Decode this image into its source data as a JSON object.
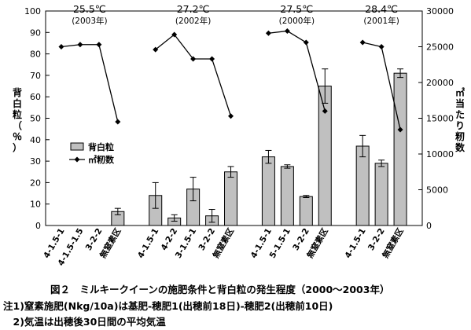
{
  "chart_data": {
    "type": "bar+line",
    "title": "図２　ミルキークイーンの施肥条件と背白粒の発生程度（2000～2003年）",
    "notes": [
      "注1)窒素施肥(Nkg/10a)は基肥-穂肥1(出穂前18日)-穂肥2(出穂前10日)",
      "　2)気温は出穂後30日間の平均気温"
    ],
    "ylabel_left": "背白粒（％）",
    "ylabel_right": "㎡当たり籾数",
    "ylim_left": [
      0,
      100
    ],
    "ylim_right": [
      0,
      30000
    ],
    "yticks_left": [
      "0",
      "10",
      "20",
      "30",
      "40",
      "50",
      "60",
      "70",
      "80",
      "90",
      "100"
    ],
    "yticks_right": [
      "0",
      "5000",
      "10000",
      "15000",
      "20000",
      "25000",
      "30000"
    ],
    "legend": [
      "背白粒",
      "㎡籾数"
    ],
    "legend_position": "center-left",
    "grid": false,
    "categories": [
      "4-1.5-1",
      "4-1.5-1.5",
      "3-2-2",
      "無窒素区",
      "4-1.5-1",
      "4-2-2",
      "3-1.5-1",
      "3-2-2",
      "無窒素区",
      "4-1.5-1",
      "5-1.5-1",
      "3-2-2",
      "無窒素区",
      "4-1.5-1",
      "3-2-2",
      "無窒素区"
    ],
    "groups": [
      {
        "label": "25.5℃\n(2003年)",
        "categories": [
          "4-1.5-1",
          "4-1.5-1.5",
          "3-2-2",
          "無窒素区"
        ],
        "bars": [
          null,
          null,
          null,
          6.5
        ],
        "bar_err": [
          null,
          null,
          null,
          1.5
        ],
        "line": [
          25000,
          25300,
          25300,
          14500
        ]
      },
      {
        "label": "27.2℃\n(2002年)",
        "categories": [
          "4-1.5-1",
          "4-2-2",
          "3-1.5-1",
          "3-2-2",
          "無窒素区"
        ],
        "bars": [
          14,
          3.5,
          17,
          4.5,
          25
        ],
        "bar_err": [
          6,
          1.5,
          5.5,
          3,
          2.5
        ],
        "line": [
          24600,
          26700,
          23300,
          23300,
          15300
        ]
      },
      {
        "label": "27.5℃\n(2000年)",
        "categories": [
          "4-1.5-1",
          "5-1.5-1",
          "3-2-2",
          "無窒素区"
        ],
        "bars": [
          32,
          27.5,
          13.5,
          65
        ],
        "bar_err": [
          3,
          0.8,
          0.5,
          8
        ],
        "line": [
          26900,
          27200,
          25600,
          16000
        ]
      },
      {
        "label": "28.4℃\n(2001年)",
        "categories": [
          "4-1.5-1",
          "3-2-2",
          "無窒素区"
        ],
        "bars": [
          37,
          29,
          71
        ],
        "bar_err": [
          5,
          1.5,
          2
        ],
        "line": [
          25600,
          25000,
          13400
        ]
      }
    ]
  },
  "colors": {
    "bar": "#c0c0c0",
    "line": "#000000",
    "axis": "#000000"
  }
}
